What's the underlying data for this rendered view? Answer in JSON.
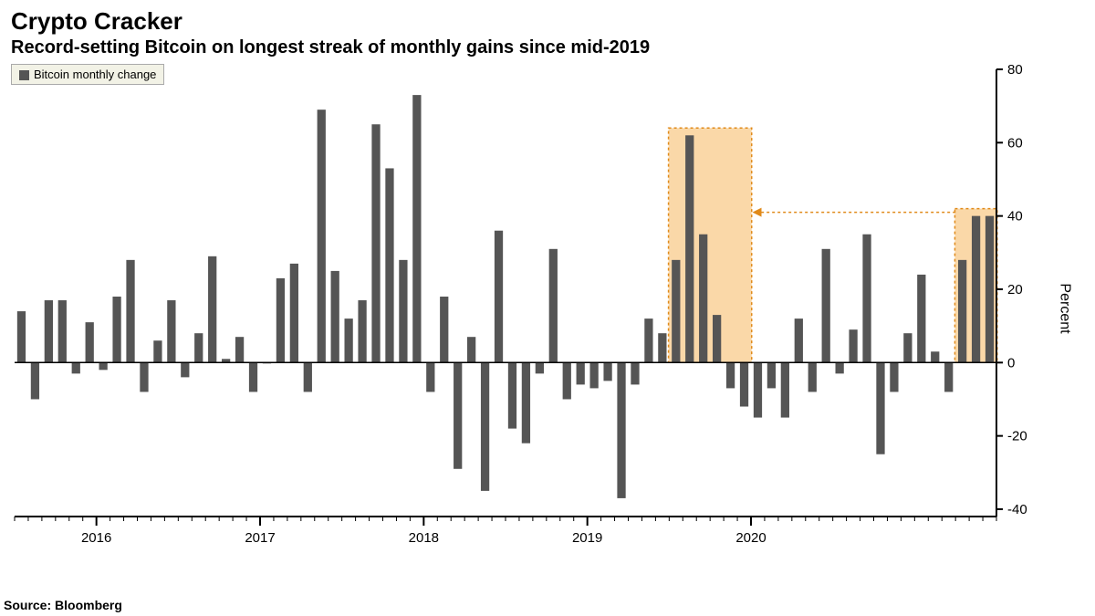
{
  "title": "Crypto Cracker",
  "subtitle": "Record-setting Bitcoin on longest streak of monthly gains since mid-2019",
  "legend_label": "Bitcoin monthly change",
  "y_axis_label": "Percent",
  "source": "Source: Bloomberg",
  "chart": {
    "type": "bar",
    "bar_color": "#555555",
    "zero_line_color": "#000000",
    "axis_color": "#000000",
    "axis_stroke": 2,
    "tick_font_size": 15,
    "highlight_fill": "#f5a93d",
    "highlight_fill_opacity": 0.45,
    "highlight_stroke": "#e08a1a",
    "highlight_stroke_dash": "3,3",
    "arrow_color": "#e08a1a",
    "ylim": [
      -42,
      80
    ],
    "yticks": [
      -40,
      -20,
      0,
      20,
      40,
      60,
      80
    ],
    "x_year_labels": [
      "2016",
      "2017",
      "2018",
      "2019",
      "2020"
    ],
    "values": [
      14,
      -10,
      17,
      17,
      -3,
      11,
      -2,
      18,
      28,
      -8,
      6,
      17,
      -4,
      8,
      29,
      1,
      7,
      -8,
      0,
      23,
      27,
      -8,
      69,
      25,
      12,
      17,
      65,
      53,
      28,
      73,
      -8,
      18,
      -29,
      7,
      -35,
      36,
      -18,
      -22,
      -3,
      31,
      -10,
      -6,
      -7,
      -5,
      -37,
      -6,
      12,
      8,
      28,
      62,
      35,
      13,
      -7,
      -12,
      -15,
      -7,
      -15,
      12,
      -8,
      31,
      -3,
      9,
      35,
      -25,
      -8,
      8,
      24,
      3,
      -8,
      28,
      40,
      40
    ],
    "highlight_1": {
      "start_idx": 48,
      "end_idx": 53,
      "top_val": 64
    },
    "highlight_2": {
      "start_idx": 69,
      "end_idx": 71,
      "top_val": 42
    },
    "arrow": {
      "from_idx": 69,
      "to_idx": 53,
      "y_val": 41
    }
  }
}
